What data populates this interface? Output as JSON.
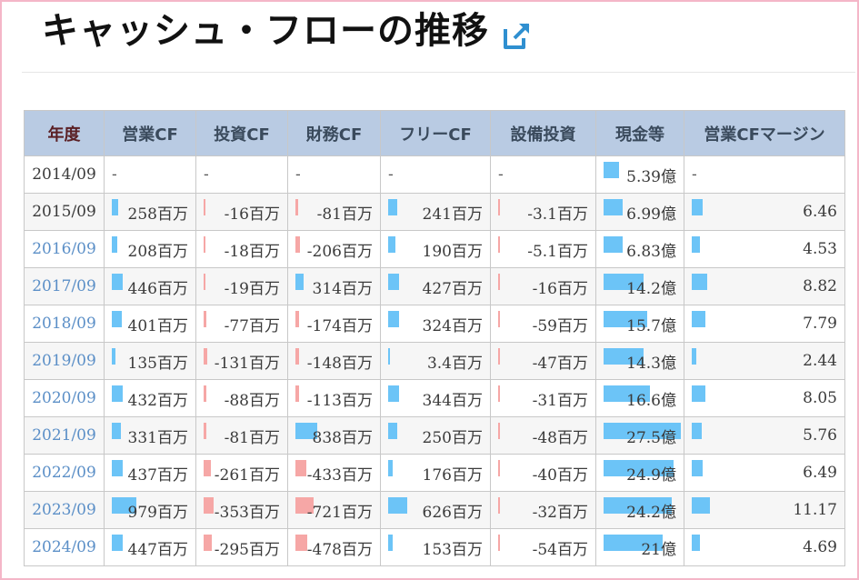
{
  "title": "キャッシュ・フローの推移",
  "icons": {
    "external_link": "external-link-icon"
  },
  "colors": {
    "positive_bar": "#6cc4f7",
    "negative_bar": "#f6a7a6",
    "header_bg": "#b9cbe3",
    "link": "#5b8fc7"
  },
  "headers": [
    "年度",
    "営業CF",
    "投資CF",
    "財務CF",
    "フリーCF",
    "設備投資",
    "現金等",
    "営業CFマージン"
  ],
  "rows": [
    {
      "year": "2014/09",
      "link": false,
      "cells": [
        {
          "text": "-",
          "bar": null
        },
        {
          "text": "-",
          "bar": null
        },
        {
          "text": "-",
          "bar": null
        },
        {
          "text": "-",
          "bar": null
        },
        {
          "text": "-",
          "bar": null
        },
        {
          "text": "5.39億",
          "bar": 0.2,
          "sign": "pos"
        },
        {
          "text": "-",
          "bar": null
        }
      ]
    },
    {
      "year": "2015/09",
      "link": false,
      "cells": [
        {
          "text": "258百万",
          "bar": 0.08,
          "sign": "pos"
        },
        {
          "text": "-16百万",
          "bar": 0.01,
          "sign": "neg"
        },
        {
          "text": "-81百万",
          "bar": 0.03,
          "sign": "neg"
        },
        {
          "text": "241百万",
          "bar": 0.11,
          "sign": "pos"
        },
        {
          "text": "-3.1百万",
          "bar": 0.0,
          "sign": "neg"
        },
        {
          "text": "6.99億",
          "bar": 0.25,
          "sign": "pos"
        },
        {
          "text": "6.46",
          "bar": 0.14,
          "sign": "pos"
        }
      ]
    },
    {
      "year": "2016/09",
      "link": true,
      "cells": [
        {
          "text": "208百万",
          "bar": 0.07,
          "sign": "pos"
        },
        {
          "text": "-18百万",
          "bar": 0.01,
          "sign": "neg"
        },
        {
          "text": "-206百万",
          "bar": 0.06,
          "sign": "neg"
        },
        {
          "text": "190百万",
          "bar": 0.09,
          "sign": "pos"
        },
        {
          "text": "-5.1百万",
          "bar": 0.0,
          "sign": "neg"
        },
        {
          "text": "6.83億",
          "bar": 0.25,
          "sign": "pos"
        },
        {
          "text": "4.53",
          "bar": 0.1,
          "sign": "pos"
        }
      ]
    },
    {
      "year": "2017/09",
      "link": true,
      "cells": [
        {
          "text": "446百万",
          "bar": 0.14,
          "sign": "pos"
        },
        {
          "text": "-19百万",
          "bar": 0.01,
          "sign": "neg"
        },
        {
          "text": "314百万",
          "bar": 0.1,
          "sign": "pos"
        },
        {
          "text": "427百万",
          "bar": 0.14,
          "sign": "pos"
        },
        {
          "text": "-16百万",
          "bar": 0.01,
          "sign": "neg"
        },
        {
          "text": "14.2億",
          "bar": 0.52,
          "sign": "pos"
        },
        {
          "text": "8.82",
          "bar": 0.19,
          "sign": "pos"
        }
      ]
    },
    {
      "year": "2018/09",
      "link": true,
      "cells": [
        {
          "text": "401百万",
          "bar": 0.13,
          "sign": "pos"
        },
        {
          "text": "-77百万",
          "bar": 0.03,
          "sign": "neg"
        },
        {
          "text": "-174百万",
          "bar": 0.05,
          "sign": "neg"
        },
        {
          "text": "324百万",
          "bar": 0.14,
          "sign": "pos"
        },
        {
          "text": "-59百万",
          "bar": 0.02,
          "sign": "neg"
        },
        {
          "text": "15.7億",
          "bar": 0.57,
          "sign": "pos"
        },
        {
          "text": "7.79",
          "bar": 0.17,
          "sign": "pos"
        }
      ]
    },
    {
      "year": "2019/09",
      "link": true,
      "cells": [
        {
          "text": "135百万",
          "bar": 0.05,
          "sign": "pos"
        },
        {
          "text": "-131百万",
          "bar": 0.05,
          "sign": "neg"
        },
        {
          "text": "-148百万",
          "bar": 0.05,
          "sign": "neg"
        },
        {
          "text": "3.4百万",
          "bar": 0.0,
          "sign": "pos"
        },
        {
          "text": "-47百万",
          "bar": 0.02,
          "sign": "neg"
        },
        {
          "text": "14.3億",
          "bar": 0.52,
          "sign": "pos"
        },
        {
          "text": "2.44",
          "bar": 0.06,
          "sign": "pos"
        }
      ]
    },
    {
      "year": "2020/09",
      "link": true,
      "cells": [
        {
          "text": "432百万",
          "bar": 0.14,
          "sign": "pos"
        },
        {
          "text": "-88百万",
          "bar": 0.03,
          "sign": "neg"
        },
        {
          "text": "-113百万",
          "bar": 0.04,
          "sign": "neg"
        },
        {
          "text": "344百万",
          "bar": 0.14,
          "sign": "pos"
        },
        {
          "text": "-31百万",
          "bar": 0.01,
          "sign": "neg"
        },
        {
          "text": "16.6億",
          "bar": 0.6,
          "sign": "pos"
        },
        {
          "text": "8.05",
          "bar": 0.17,
          "sign": "pos"
        }
      ]
    },
    {
      "year": "2021/09",
      "link": true,
      "cells": [
        {
          "text": "331百万",
          "bar": 0.11,
          "sign": "pos"
        },
        {
          "text": "-81百万",
          "bar": 0.03,
          "sign": "neg"
        },
        {
          "text": "838百万",
          "bar": 0.27,
          "sign": "pos"
        },
        {
          "text": "250百万",
          "bar": 0.11,
          "sign": "pos"
        },
        {
          "text": "-48百万",
          "bar": 0.02,
          "sign": "neg"
        },
        {
          "text": "27.5億",
          "bar": 1.0,
          "sign": "pos"
        },
        {
          "text": "5.76",
          "bar": 0.12,
          "sign": "pos"
        }
      ]
    },
    {
      "year": "2022/09",
      "link": true,
      "cells": [
        {
          "text": "437百万",
          "bar": 0.14,
          "sign": "pos"
        },
        {
          "text": "-261百万",
          "bar": 0.09,
          "sign": "neg"
        },
        {
          "text": "-433百万",
          "bar": 0.14,
          "sign": "neg"
        },
        {
          "text": "176百万",
          "bar": 0.06,
          "sign": "pos"
        },
        {
          "text": "-40百万",
          "bar": 0.01,
          "sign": "neg"
        },
        {
          "text": "24.9億",
          "bar": 0.9,
          "sign": "pos"
        },
        {
          "text": "6.49",
          "bar": 0.14,
          "sign": "pos"
        }
      ]
    },
    {
      "year": "2023/09",
      "link": true,
      "cells": [
        {
          "text": "979百万",
          "bar": 0.31,
          "sign": "pos"
        },
        {
          "text": "-353百万",
          "bar": 0.12,
          "sign": "neg"
        },
        {
          "text": "-721百万",
          "bar": 0.23,
          "sign": "neg"
        },
        {
          "text": "626百万",
          "bar": 0.24,
          "sign": "pos"
        },
        {
          "text": "-32百万",
          "bar": 0.01,
          "sign": "neg"
        },
        {
          "text": "24.2億",
          "bar": 0.88,
          "sign": "pos"
        },
        {
          "text": "11.17",
          "bar": 0.23,
          "sign": "pos"
        }
      ]
    },
    {
      "year": "2024/09",
      "link": true,
      "cells": [
        {
          "text": "447百万",
          "bar": 0.14,
          "sign": "pos"
        },
        {
          "text": "-295百万",
          "bar": 0.1,
          "sign": "neg"
        },
        {
          "text": "-478百万",
          "bar": 0.15,
          "sign": "neg"
        },
        {
          "text": "153百万",
          "bar": 0.06,
          "sign": "pos"
        },
        {
          "text": "-54百万",
          "bar": 0.02,
          "sign": "neg"
        },
        {
          "text": "21億",
          "bar": 0.77,
          "sign": "pos"
        },
        {
          "text": "4.69",
          "bar": 0.1,
          "sign": "pos"
        }
      ]
    }
  ]
}
